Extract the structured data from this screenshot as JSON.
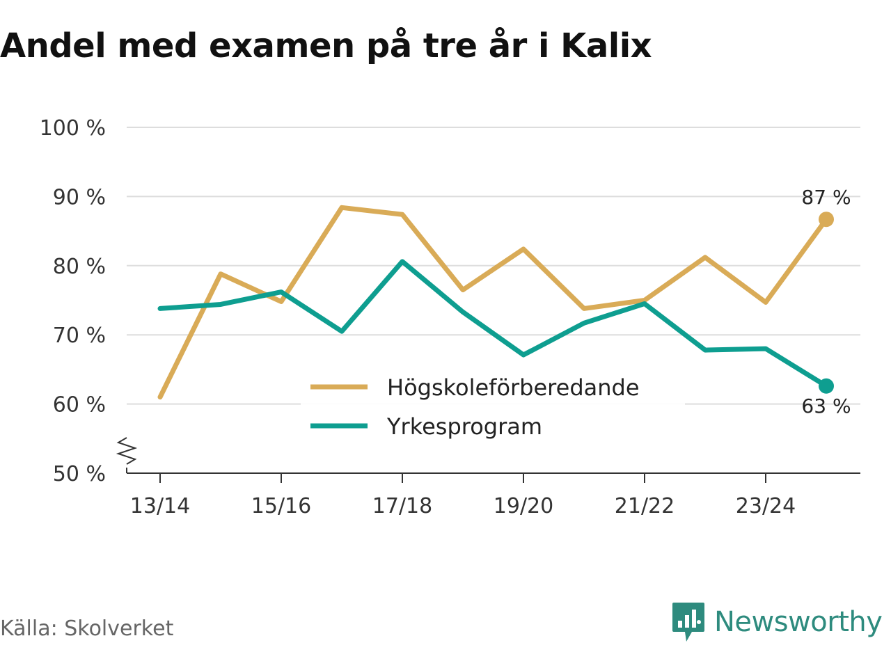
{
  "title": "Andel med examen på tre år i Kalix",
  "source": "Källa: Skolverket",
  "brand": {
    "name": "Newsworthy",
    "icon": "newsworthy-logo-icon",
    "color": "#2e8b7e"
  },
  "chart_data": {
    "type": "line",
    "x": [
      "13/14",
      "14/15",
      "15/16",
      "16/17",
      "17/18",
      "18/19",
      "19/20",
      "20/21",
      "21/22",
      "22/23",
      "23/24",
      "24/25"
    ],
    "x_tick_labels": [
      "13/14",
      "15/16",
      "17/18",
      "19/20",
      "21/22",
      "23/24"
    ],
    "ylim": [
      50,
      100
    ],
    "y_ticks": [
      50,
      60,
      70,
      80,
      90,
      100
    ],
    "y_tick_labels": [
      "50 %",
      "60 %",
      "70 %",
      "80 %",
      "90 %",
      "100 %"
    ],
    "y_axis_break": true,
    "grid": true,
    "legend_position": "center",
    "series": [
      {
        "name": "Högskoleförberedande",
        "color": "#d9ab57",
        "values": [
          61,
          78.8,
          74.8,
          88.4,
          87.4,
          76.5,
          82.4,
          73.8,
          75,
          81.2,
          74.7,
          86.7
        ],
        "end_label": "87 %"
      },
      {
        "name": "Yrkesprogram",
        "color": "#0e9e90",
        "values": [
          73.8,
          74.4,
          76.2,
          70.5,
          80.6,
          73.3,
          67.1,
          71.7,
          74.5,
          67.8,
          68,
          62.6
        ],
        "end_label": "63 %"
      }
    ]
  }
}
